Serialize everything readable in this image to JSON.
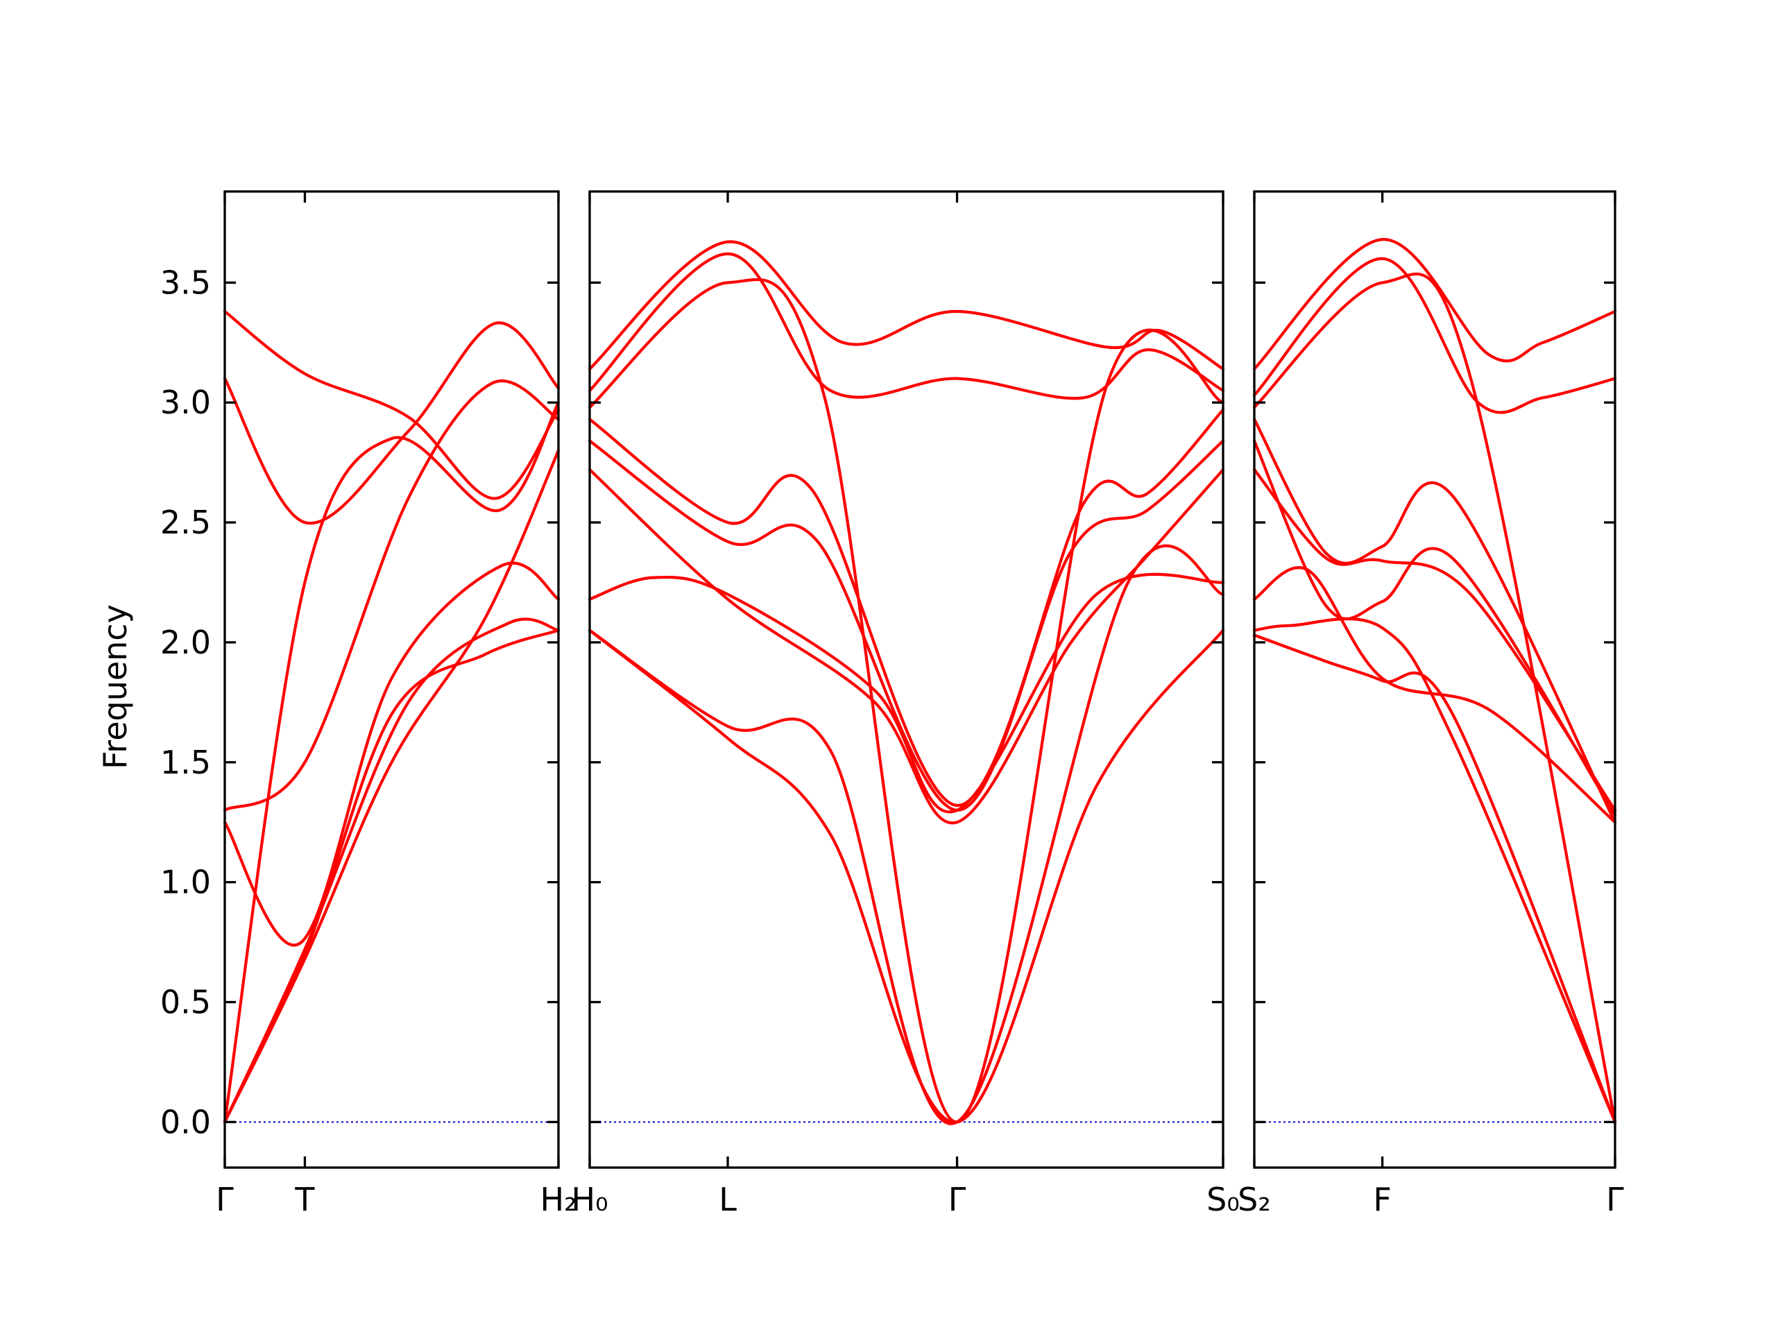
{
  "chart_data": {
    "type": "line",
    "title": "",
    "ylabel": "Frequency",
    "ylim": [
      -0.19,
      3.88
    ],
    "yticks": [
      "0.0",
      "0.5",
      "1.0",
      "1.5",
      "2.0",
      "2.5",
      "3.0",
      "3.5"
    ],
    "grid": false,
    "colors": {
      "bands": "#ff0000",
      "zero_line": "#0000cc",
      "frame": "#000000"
    },
    "segments": [
      {
        "name": "gamma-T-H2",
        "x_labels": [
          "Γ",
          "T",
          "H₂"
        ],
        "x_label_positions": [
          0,
          0.24,
          1
        ],
        "bands": [
          {
            "x": [
              0,
              0.24,
              0.5,
              0.78,
              1
            ],
            "y": [
              0.0,
              0.68,
              1.5,
              2.1,
              2.8
            ]
          },
          {
            "x": [
              0,
              0.24,
              0.5,
              0.78,
              1
            ],
            "y": [
              0.0,
              0.7,
              1.7,
              1.95,
              2.05
            ]
          },
          {
            "x": [
              0,
              0.24,
              0.5,
              0.82,
              1
            ],
            "y": [
              0.0,
              2.25,
              2.85,
              2.55,
              3.0
            ]
          },
          {
            "x": [
              0,
              0.23,
              0.5,
              0.83,
              1
            ],
            "y": [
              1.25,
              0.75,
              1.85,
              2.32,
              2.18
            ]
          },
          {
            "x": [
              0,
              0.24,
              0.55,
              0.8,
              1
            ],
            "y": [
              1.3,
              1.5,
              2.6,
              3.08,
              2.93
            ]
          },
          {
            "x": [
              0,
              0.24,
              0.55,
              0.81,
              1
            ],
            "y": [
              3.1,
              2.5,
              2.88,
              3.33,
              3.06
            ]
          },
          {
            "x": [
              0,
              0.24,
              0.55,
              0.81,
              1
            ],
            "y": [
              3.38,
              3.12,
              2.94,
              2.6,
              2.97
            ]
          },
          {
            "x": [
              0,
              0.24,
              0.55,
              0.85,
              1
            ],
            "y": [
              0.0,
              0.72,
              1.75,
              2.08,
              2.05
            ]
          }
        ]
      },
      {
        "name": "H0-L-gamma-S0",
        "x_labels": [
          "H₀",
          "L",
          "Γ",
          "S₀"
        ],
        "x_label_positions": [
          0,
          0.218,
          0.58,
          1
        ],
        "bands": [
          {
            "x": [
              0,
              0.218,
              0.38,
              0.58,
              0.8,
              1
            ],
            "y": [
              2.05,
              1.6,
              1.2,
              0.0,
              1.4,
              2.05
            ]
          },
          {
            "x": [
              0,
              0.218,
              0.38,
              0.58,
              0.85,
              1
            ],
            "y": [
              2.05,
              1.65,
              1.55,
              0.0,
              2.25,
              2.2
            ]
          },
          {
            "x": [
              0,
              0.1,
              0.218,
              0.45,
              0.58,
              0.8,
              1
            ],
            "y": [
              2.18,
              2.27,
              2.2,
              1.8,
              1.3,
              2.2,
              2.25
            ]
          },
          {
            "x": [
              0,
              0.218,
              0.45,
              0.58,
              0.76,
              0.88,
              1
            ],
            "y": [
              2.72,
              2.18,
              1.75,
              1.25,
              2.0,
              2.36,
              2.72
            ]
          },
          {
            "x": [
              0,
              0.218,
              0.36,
              0.58,
              0.76,
              0.88,
              1
            ],
            "y": [
              2.84,
              2.42,
              2.42,
              1.3,
              2.38,
              2.55,
              2.84
            ]
          },
          {
            "x": [
              0,
              0.218,
              0.35,
              0.58,
              0.78,
              0.88,
              1
            ],
            "y": [
              2.93,
              2.5,
              2.64,
              1.32,
              2.58,
              2.62,
              2.97
            ]
          },
          {
            "x": [
              0,
              0.218,
              0.37,
              0.58,
              0.82,
              1
            ],
            "y": [
              2.98,
              3.5,
              3.03,
              0.0,
              3.1,
              3.0
            ]
          },
          {
            "x": [
              0,
              0.218,
              0.38,
              0.58,
              0.78,
              0.88,
              1
            ],
            "y": [
              3.05,
              3.62,
              3.05,
              3.1,
              3.02,
              3.22,
              3.05
            ]
          },
          {
            "x": [
              0,
              0.218,
              0.4,
              0.58,
              0.82,
              0.9,
              1
            ],
            "y": [
              3.14,
              3.67,
              3.25,
              3.38,
              3.23,
              3.3,
              3.14
            ]
          }
        ]
      },
      {
        "name": "S2-F-gamma",
        "x_labels": [
          "S₂",
          "F",
          "Γ"
        ],
        "x_label_positions": [
          0,
          0.355,
          1
        ],
        "bands": [
          {
            "x": [
              0,
              0.2,
              0.355,
              0.55,
              1
            ],
            "y": [
              2.03,
              1.92,
              1.84,
              1.7,
              0.0
            ]
          },
          {
            "x": [
              0,
              0.1,
              0.355,
              0.55,
              1
            ],
            "y": [
              2.05,
              2.07,
              2.06,
              1.6,
              0.0
            ]
          },
          {
            "x": [
              0,
              0.15,
              0.355,
              0.65,
              1
            ],
            "y": [
              2.18,
              2.3,
              1.85,
              1.72,
              1.25
            ]
          },
          {
            "x": [
              0,
              0.2,
              0.355,
              0.6,
              1
            ],
            "y": [
              2.72,
              2.35,
              2.34,
              2.2,
              1.3
            ]
          },
          {
            "x": [
              0,
              0.2,
              0.355,
              0.55,
              1
            ],
            "y": [
              2.84,
              2.15,
              2.17,
              2.35,
              1.28
            ]
          },
          {
            "x": [
              0,
              0.2,
              0.355,
              0.55,
              1
            ],
            "y": [
              2.93,
              2.37,
              2.4,
              2.61,
              1.25
            ]
          },
          {
            "x": [
              0,
              0.355,
              0.6,
              1
            ],
            "y": [
              2.98,
              3.5,
              3.1,
              0.0
            ]
          },
          {
            "x": [
              0,
              0.355,
              0.62,
              0.8,
              1
            ],
            "y": [
              3.03,
              3.6,
              3.0,
              3.02,
              3.1
            ]
          },
          {
            "x": [
              0,
              0.355,
              0.65,
              0.8,
              1
            ],
            "y": [
              3.14,
              3.68,
              3.2,
              3.25,
              3.38
            ]
          }
        ]
      }
    ]
  }
}
